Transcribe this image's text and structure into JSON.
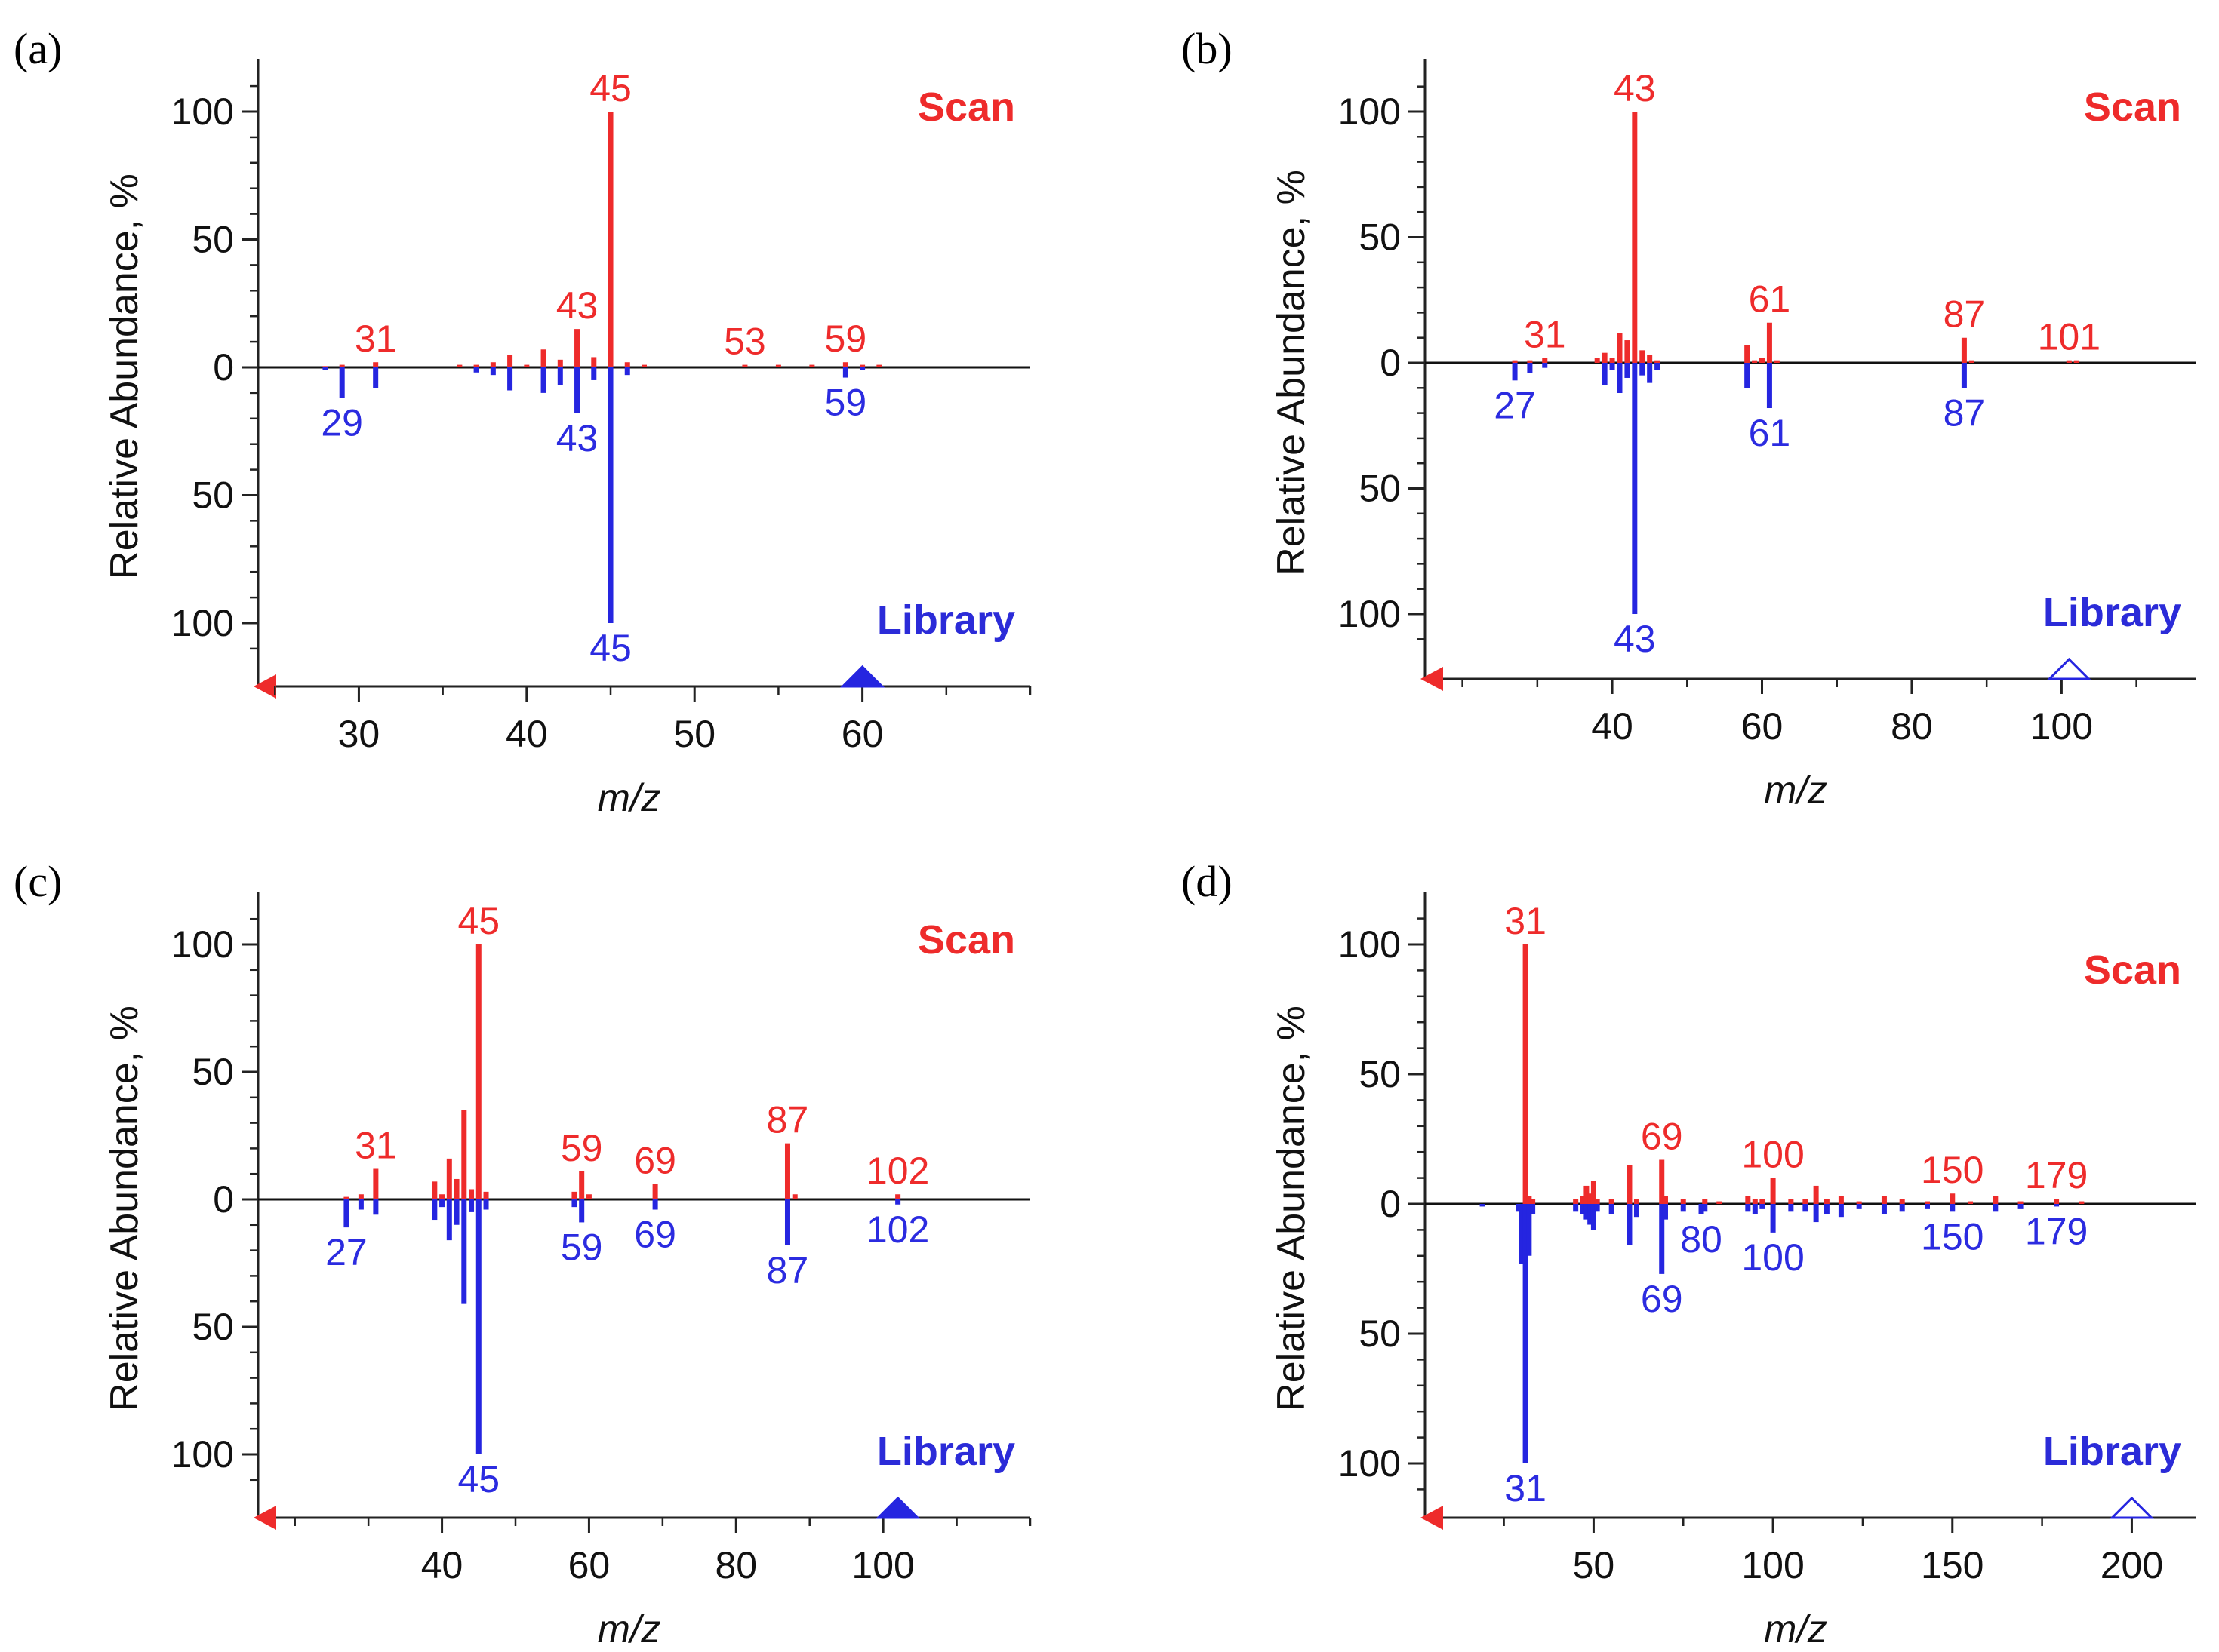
{
  "colors": {
    "scan": "#ee2b2b",
    "library": "#2525e0",
    "axis": "#222222"
  },
  "chart_data": [
    {
      "id": "a",
      "type": "bar",
      "panel_label": "(a)",
      "xlabel": "m/z",
      "ylabel": "Relative Abundance, %",
      "xlim": [
        24,
        70
      ],
      "ylim": [
        -120,
        120
      ],
      "xticks": [
        "30",
        "40",
        "50",
        "60"
      ],
      "xtick_values": [
        30,
        40,
        50,
        60
      ],
      "yticks": [
        "100",
        "50",
        "0",
        "50",
        "100"
      ],
      "ytick_values": [
        100,
        50,
        0,
        -50,
        -100
      ],
      "scan_label": "Scan",
      "library_label": "Library",
      "marker": {
        "x": 60,
        "style": "filled"
      },
      "series": [
        {
          "name": "Scan",
          "direction": "up",
          "x": [
            28,
            29,
            31,
            36,
            37,
            38,
            39,
            40,
            41,
            42,
            43,
            44,
            45,
            46,
            47,
            53,
            55,
            57,
            59,
            60,
            61
          ],
          "values": [
            0.5,
            1,
            2,
            1,
            1,
            2,
            5,
            1,
            7,
            3,
            15,
            4,
            100,
            2,
            1,
            1,
            1,
            1,
            2,
            1,
            1
          ]
        },
        {
          "name": "Library",
          "direction": "down",
          "x": [
            28,
            29,
            31,
            37,
            38,
            39,
            41,
            42,
            43,
            44,
            45,
            46,
            59,
            60
          ],
          "values": [
            1,
            12,
            8,
            2,
            3,
            9,
            10,
            7,
            18,
            5,
            100,
            3,
            4,
            1
          ]
        }
      ],
      "peak_labels": {
        "scan": [
          {
            "x": 31,
            "text": "31"
          },
          {
            "x": 45,
            "text": "45"
          },
          {
            "x": 43,
            "text": "43"
          },
          {
            "x": 53,
            "text": "53"
          },
          {
            "x": 59,
            "text": "59"
          }
        ],
        "library": [
          {
            "x": 29,
            "text": "29"
          },
          {
            "x": 43,
            "text": "43"
          },
          {
            "x": 45,
            "text": "45"
          },
          {
            "x": 59,
            "text": "59"
          }
        ]
      }
    },
    {
      "id": "b",
      "type": "bar",
      "panel_label": "(b)",
      "xlabel": "m/z",
      "ylabel": "Relative Abundance, %",
      "xlim": [
        15,
        118
      ],
      "ylim": [
        -120,
        120
      ],
      "xticks": [
        "40",
        "60",
        "80",
        "100"
      ],
      "xtick_values": [
        40,
        60,
        80,
        100
      ],
      "yticks": [
        "100",
        "50",
        "0",
        "50",
        "100"
      ],
      "ytick_values": [
        100,
        50,
        0,
        -50,
        -100
      ],
      "scan_label": "Scan",
      "library_label": "Library",
      "marker": {
        "x": 101,
        "style": "open"
      },
      "series": [
        {
          "name": "Scan",
          "direction": "up",
          "x": [
            27,
            29,
            31,
            38,
            39,
            40,
            41,
            42,
            43,
            44,
            45,
            46,
            58,
            59,
            60,
            61,
            62,
            87,
            88,
            101,
            102
          ],
          "values": [
            1,
            1,
            2,
            2,
            4,
            2,
            12,
            9,
            100,
            5,
            3,
            1,
            7,
            1,
            2,
            16,
            1,
            10,
            1,
            1,
            1
          ]
        },
        {
          "name": "Library",
          "direction": "down",
          "x": [
            27,
            29,
            31,
            39,
            40,
            41,
            42,
            43,
            44,
            45,
            46,
            58,
            61,
            87
          ],
          "values": [
            7,
            4,
            2,
            9,
            3,
            12,
            6,
            100,
            5,
            8,
            3,
            10,
            18,
            10
          ]
        }
      ],
      "peak_labels": {
        "scan": [
          {
            "x": 31,
            "text": "31"
          },
          {
            "x": 43,
            "text": "43"
          },
          {
            "x": 61,
            "text": "61"
          },
          {
            "x": 87,
            "text": "87"
          },
          {
            "x": 101,
            "text": "101"
          }
        ],
        "library": [
          {
            "x": 27,
            "text": "27"
          },
          {
            "x": 43,
            "text": "43"
          },
          {
            "x": 61,
            "text": "61"
          },
          {
            "x": 87,
            "text": "87"
          }
        ]
      }
    },
    {
      "id": "c",
      "type": "bar",
      "panel_label": "(c)",
      "xlabel": "m/z",
      "ylabel": "Relative Abundance, %",
      "xlim": [
        15,
        120
      ],
      "ylim": [
        -120,
        120
      ],
      "xticks": [
        "40",
        "60",
        "80",
        "100"
      ],
      "xtick_values": [
        40,
        60,
        80,
        100
      ],
      "yticks": [
        "100",
        "50",
        "0",
        "50",
        "100"
      ],
      "ytick_values": [
        100,
        50,
        0,
        -50,
        -100
      ],
      "scan_label": "Scan",
      "library_label": "Library",
      "marker": {
        "x": 102,
        "style": "filled"
      },
      "series": [
        {
          "name": "Scan",
          "direction": "up",
          "x": [
            27,
            29,
            31,
            39,
            40,
            41,
            42,
            43,
            44,
            45,
            46,
            58,
            59,
            60,
            69,
            87,
            88,
            102
          ],
          "values": [
            1,
            2,
            12,
            7,
            2,
            16,
            8,
            35,
            4,
            100,
            3,
            3,
            11,
            2,
            6,
            22,
            2,
            2
          ]
        },
        {
          "name": "Library",
          "direction": "down",
          "x": [
            27,
            29,
            31,
            39,
            40,
            41,
            42,
            43,
            44,
            45,
            46,
            58,
            59,
            69,
            87,
            102
          ],
          "values": [
            11,
            4,
            6,
            8,
            3,
            16,
            10,
            41,
            5,
            100,
            4,
            3,
            9,
            4,
            18,
            2
          ]
        }
      ],
      "peak_labels": {
        "scan": [
          {
            "x": 31,
            "text": "31"
          },
          {
            "x": 45,
            "text": "45"
          },
          {
            "x": 59,
            "text": "59"
          },
          {
            "x": 69,
            "text": "69"
          },
          {
            "x": 87,
            "text": "87"
          },
          {
            "x": 102,
            "text": "102"
          }
        ],
        "library": [
          {
            "x": 27,
            "text": "27"
          },
          {
            "x": 45,
            "text": "45"
          },
          {
            "x": 59,
            "text": "59"
          },
          {
            "x": 69,
            "text": "69"
          },
          {
            "x": 87,
            "text": "87"
          },
          {
            "x": 102,
            "text": "102"
          }
        ]
      }
    },
    {
      "id": "d",
      "type": "bar",
      "panel_label": "(d)",
      "xlabel": "m/z",
      "ylabel": "Relative Abundance, %",
      "xlim": [
        3,
        218
      ],
      "ylim": [
        -120,
        120
      ],
      "xticks": [
        "50",
        "100",
        "150",
        "200"
      ],
      "xtick_values": [
        50,
        100,
        150,
        200
      ],
      "yticks": [
        "100",
        "50",
        "0",
        "50",
        "100"
      ],
      "ytick_values": [
        100,
        50,
        0,
        -50,
        -100
      ],
      "scan_label": "Scan",
      "library_label": "Library",
      "marker": {
        "x": 200,
        "style": "open"
      },
      "series": [
        {
          "name": "Scan",
          "direction": "up",
          "x": [
            31,
            32,
            33,
            45,
            47,
            48,
            49,
            50,
            51,
            55,
            60,
            62,
            69,
            70,
            75,
            81,
            85,
            93,
            95,
            97,
            100,
            105,
            109,
            112,
            115,
            119,
            124,
            131,
            136,
            143,
            150,
            155,
            162,
            169,
            179,
            186
          ],
          "values": [
            100,
            3,
            2,
            2,
            3,
            7,
            4,
            9,
            2,
            2,
            15,
            2,
            17,
            3,
            2,
            2,
            1,
            3,
            2,
            2,
            10,
            2,
            2,
            7,
            2,
            3,
            1,
            3,
            2,
            1,
            4,
            1,
            3,
            1,
            2,
            1
          ]
        },
        {
          "name": "Library",
          "direction": "down",
          "x": [
            19,
            29,
            30,
            31,
            32,
            33,
            45,
            47,
            48,
            49,
            50,
            51,
            55,
            60,
            62,
            69,
            70,
            75,
            80,
            81,
            93,
            95,
            97,
            100,
            105,
            109,
            112,
            115,
            119,
            124,
            131,
            136,
            143,
            150,
            162,
            169,
            179
          ],
          "values": [
            1,
            3,
            23,
            100,
            20,
            4,
            3,
            4,
            6,
            8,
            10,
            3,
            4,
            16,
            5,
            27,
            6,
            3,
            4,
            3,
            3,
            4,
            2,
            11,
            3,
            3,
            7,
            4,
            5,
            2,
            4,
            3,
            2,
            3,
            3,
            2,
            1
          ]
        }
      ],
      "peak_labels": {
        "scan": [
          {
            "x": 31,
            "text": "31"
          },
          {
            "x": 69,
            "text": "69"
          },
          {
            "x": 100,
            "text": "100"
          },
          {
            "x": 150,
            "text": "150"
          },
          {
            "x": 179,
            "text": "179"
          }
        ],
        "library": [
          {
            "x": 31,
            "text": "31"
          },
          {
            "x": 69,
            "text": "69"
          },
          {
            "x": 80,
            "text": "80"
          },
          {
            "x": 100,
            "text": "100"
          },
          {
            "x": 150,
            "text": "150"
          },
          {
            "x": 179,
            "text": "179"
          }
        ]
      }
    }
  ]
}
